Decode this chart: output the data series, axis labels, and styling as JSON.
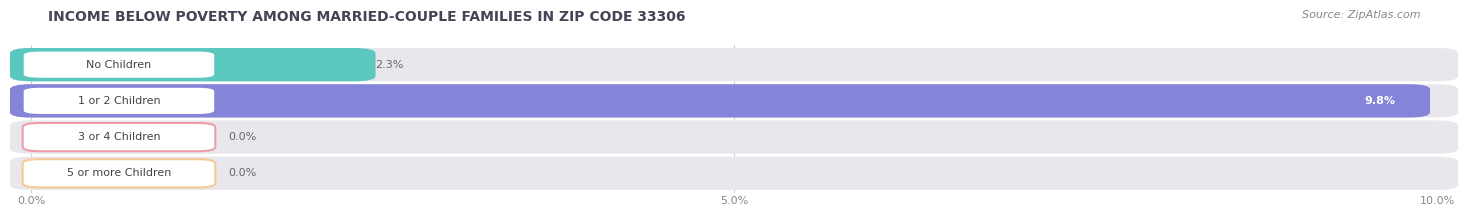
{
  "title": "INCOME BELOW POVERTY AMONG MARRIED-COUPLE FAMILIES IN ZIP CODE 33306",
  "source": "Source: ZipAtlas.com",
  "categories": [
    "No Children",
    "1 or 2 Children",
    "3 or 4 Children",
    "5 or more Children"
  ],
  "values": [
    2.3,
    9.8,
    0.0,
    0.0
  ],
  "bar_colors": [
    "#5bc8c0",
    "#8484d8",
    "#f09caa",
    "#f5c896"
  ],
  "xlim": [
    0,
    10.0
  ],
  "xticks": [
    0.0,
    5.0,
    10.0
  ],
  "xtick_labels": [
    "0.0%",
    "5.0%",
    "10.0%"
  ],
  "background_color": "#ffffff",
  "bar_track_color": "#e8e8ec",
  "title_fontsize": 10,
  "source_fontsize": 8,
  "label_fontsize": 8,
  "value_fontsize": 8,
  "tick_fontsize": 8,
  "title_color": "#444455",
  "source_color": "#888888"
}
